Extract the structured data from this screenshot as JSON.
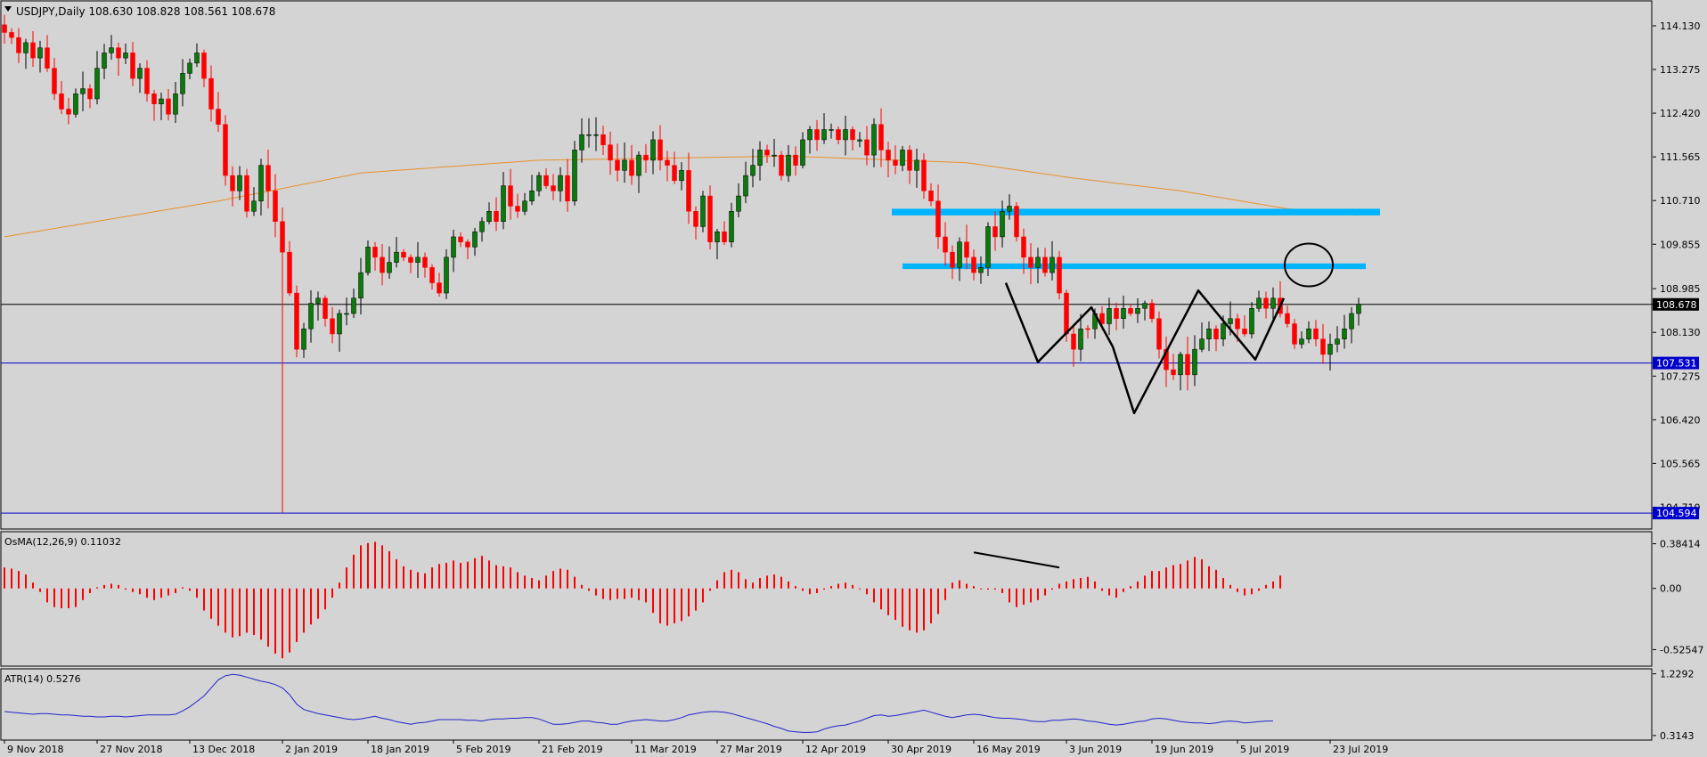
{
  "header": {
    "symbol_line": "USDJPY,Daily  108.630 108.828 108.561 108.678",
    "menu_arrow_icon": "triangle-down-icon"
  },
  "colors": {
    "background": "#d4d4d4",
    "bull": "#0a7a0a",
    "bear": "#ff0000",
    "ma": "#e8922c",
    "zone": "#00b4ff",
    "osma": "#ff0000",
    "atr": "#2222cc",
    "hline": "#0000cc",
    "price_tag": "#000000",
    "hline_tag": "#0000cc",
    "drawing": "#000000"
  },
  "chart_data": [
    {
      "type": "candlestick",
      "title": "USDJPY,Daily  108.630 108.828 108.561 108.678",
      "ylim": [
        104.3,
        114.6
      ],
      "y_ticks": [
        "114.130",
        "113.275",
        "112.420",
        "111.565",
        "110.710",
        "109.855",
        "108.985",
        "108.130",
        "107.275",
        "106.420",
        "105.565",
        "104.710"
      ],
      "x_tick_labels": [
        "9 Nov 2018",
        "27 Nov 2018",
        "13 Dec 2018",
        "2 Jan 2019",
        "18 Jan 2019",
        "5 Feb 2019",
        "21 Feb 2019",
        "11 Mar 2019",
        "27 Mar 2019",
        "12 Apr 2019",
        "30 Apr 2019",
        "16 May 2019",
        "3 Jun 2019",
        "19 Jun 2019",
        "5 Jul 2019",
        "23 Jul 2019"
      ],
      "x_tick_index": [
        0,
        13,
        26,
        39,
        51,
        63,
        75,
        88,
        100,
        112,
        124,
        136,
        149,
        161,
        173,
        186
      ],
      "close": [
        114.0,
        113.9,
        113.6,
        113.8,
        113.5,
        113.7,
        113.3,
        112.8,
        112.5,
        112.4,
        112.8,
        112.9,
        112.7,
        113.3,
        113.6,
        113.7,
        113.5,
        113.6,
        113.1,
        113.3,
        112.8,
        112.6,
        112.7,
        112.4,
        112.8,
        113.2,
        113.4,
        113.6,
        113.1,
        112.5,
        112.2,
        111.2,
        110.9,
        111.2,
        110.5,
        110.7,
        111.4,
        110.9,
        110.3,
        109.7,
        108.9,
        107.8,
        108.2,
        108.7,
        108.8,
        108.4,
        108.1,
        108.5,
        108.5,
        108.8,
        109.3,
        109.8,
        109.6,
        109.3,
        109.5,
        109.7,
        109.6,
        109.5,
        109.6,
        109.4,
        109.1,
        108.9,
        109.6,
        110.0,
        109.9,
        109.8,
        110.1,
        110.3,
        110.5,
        110.3,
        111.0,
        110.6,
        110.5,
        110.7,
        110.9,
        111.2,
        111.0,
        110.9,
        111.2,
        110.7,
        111.7,
        112.0,
        112.0,
        112.0,
        111.8,
        111.5,
        111.3,
        111.5,
        111.2,
        111.6,
        111.5,
        111.9,
        111.5,
        111.4,
        111.1,
        111.3,
        110.5,
        110.2,
        110.8,
        109.9,
        110.1,
        109.9,
        110.5,
        110.8,
        111.2,
        111.4,
        111.7,
        111.6,
        111.6,
        111.2,
        111.6,
        111.4,
        111.9,
        112.1,
        111.9,
        112.1,
        112.1,
        111.9,
        112.1,
        111.9,
        111.9,
        111.6,
        112.2,
        111.7,
        111.5,
        111.4,
        111.7,
        111.3,
        111.5,
        110.9,
        110.7,
        110.0,
        109.7,
        109.4,
        109.9,
        109.6,
        109.3,
        109.4,
        110.2,
        110.0,
        110.5,
        110.6,
        110.0,
        109.6,
        109.4,
        109.6,
        109.3,
        109.6,
        108.9,
        108.1,
        107.8,
        108.2,
        108.2,
        108.5,
        108.3,
        108.6,
        108.4,
        108.6,
        108.5,
        108.6,
        108.7,
        108.4,
        107.8,
        107.4,
        107.3,
        107.7,
        107.3,
        107.8,
        108.0,
        108.2,
        108.0,
        108.3,
        108.4,
        108.2,
        108.1,
        108.6,
        108.8,
        108.6,
        108.8,
        108.5,
        108.3,
        107.9,
        108.0,
        108.2,
        108.0,
        107.7,
        107.9,
        108.0,
        108.2,
        108.5,
        108.68
      ],
      "moving_average": {
        "name": "",
        "values_by_index": [
          [
            0,
            110.0
          ],
          [
            30,
            110.7
          ],
          [
            50,
            111.25
          ],
          [
            75,
            111.5
          ],
          [
            110,
            111.58
          ],
          [
            135,
            111.45
          ],
          [
            150,
            111.15
          ],
          [
            165,
            110.9
          ],
          [
            180,
            110.55
          ],
          [
            190,
            110.42
          ]
        ]
      },
      "zones": [
        {
          "from_index": 124.5,
          "to_index": 193,
          "low": 110.42,
          "high": 110.55
        },
        {
          "from_index": 126,
          "to_index": 191,
          "low": 109.37,
          "high": 109.48
        }
      ],
      "horizontal_lines": [
        {
          "value": 108.678,
          "label": "108.678",
          "style": "price"
        },
        {
          "value": 107.531,
          "label": "107.531",
          "style": "blue"
        },
        {
          "value": 104.594,
          "label": "104.594",
          "style": "blue"
        }
      ],
      "annotation_polyline": [
        [
          140.5,
          109.1
        ],
        [
          145,
          107.55
        ],
        [
          152.5,
          108.62
        ],
        [
          155.5,
          107.85
        ],
        [
          158.5,
          106.55
        ],
        [
          167.5,
          108.95
        ],
        [
          175.5,
          107.6
        ],
        [
          179.5,
          108.8
        ]
      ],
      "annotation_circle": {
        "index": 183,
        "value": 109.45
      }
    },
    {
      "type": "bar",
      "title": "OsMA(12,26,9) 0.11032",
      "ylim": [
        -0.66,
        0.48
      ],
      "y_ticks": [
        "0.38414",
        "0.00",
        "-0.52547"
      ],
      "values": [
        0.18,
        0.17,
        0.15,
        0.12,
        0.05,
        -0.03,
        -0.12,
        -0.16,
        -0.17,
        -0.17,
        -0.16,
        -0.1,
        -0.04,
        0.01,
        0.03,
        0.04,
        0.03,
        -0.01,
        -0.03,
        -0.05,
        -0.08,
        -0.1,
        -0.08,
        -0.06,
        -0.04,
        0.01,
        -0.02,
        -0.08,
        -0.19,
        -0.26,
        -0.32,
        -0.38,
        -0.42,
        -0.41,
        -0.38,
        -0.4,
        -0.44,
        -0.5,
        -0.56,
        -0.6,
        -0.55,
        -0.46,
        -0.38,
        -0.31,
        -0.26,
        -0.18,
        -0.08,
        0.05,
        0.18,
        0.29,
        0.37,
        0.39,
        0.4,
        0.37,
        0.32,
        0.25,
        0.19,
        0.16,
        0.14,
        0.13,
        0.18,
        0.21,
        0.22,
        0.24,
        0.22,
        0.23,
        0.26,
        0.28,
        0.24,
        0.2,
        0.19,
        0.18,
        0.14,
        0.11,
        0.09,
        0.07,
        0.11,
        0.15,
        0.17,
        0.16,
        0.1,
        0.03,
        -0.02,
        -0.06,
        -0.09,
        -0.1,
        -0.09,
        -0.09,
        -0.08,
        -0.1,
        -0.12,
        -0.21,
        -0.3,
        -0.32,
        -0.3,
        -0.28,
        -0.24,
        -0.19,
        -0.12,
        -0.02,
        0.07,
        0.14,
        0.16,
        0.14,
        0.08,
        0.05,
        0.09,
        0.11,
        0.12,
        0.1,
        0.06,
        0.02,
        -0.02,
        -0.05,
        -0.04,
        -0.01,
        0.02,
        0.04,
        0.05,
        0.03,
        0.0,
        -0.05,
        -0.12,
        -0.18,
        -0.23,
        -0.27,
        -0.33,
        -0.36,
        -0.38,
        -0.36,
        -0.3,
        -0.22,
        -0.1,
        0.05,
        0.07,
        0.04,
        0.02,
        0.0,
        -0.01,
        -0.01,
        -0.04,
        -0.12,
        -0.16,
        -0.14,
        -0.12,
        -0.1,
        -0.06,
        -0.01,
        0.04,
        0.06,
        0.08,
        0.09,
        0.1,
        0.06,
        -0.02,
        -0.06,
        -0.08,
        -0.03,
        0.02,
        0.06,
        0.11,
        0.15,
        0.15,
        0.18,
        0.2,
        0.21,
        0.24,
        0.27,
        0.25,
        0.19,
        0.16,
        0.09,
        0.03,
        -0.03,
        -0.06,
        -0.05,
        -0.02,
        0.03,
        0.06,
        0.11
      ],
      "trendline": [
        [
          136,
          0.31
        ],
        [
          148,
          0.18
        ]
      ]
    },
    {
      "type": "line",
      "title": "ATR(14) 0.5276",
      "ylim": [
        0.26,
        1.29
      ],
      "y_ticks": [
        "1.2292",
        "0.3143"
      ],
      "values": [
        0.67,
        0.66,
        0.65,
        0.64,
        0.63,
        0.64,
        0.64,
        0.63,
        0.62,
        0.62,
        0.61,
        0.6,
        0.6,
        0.59,
        0.59,
        0.6,
        0.6,
        0.59,
        0.6,
        0.61,
        0.62,
        0.62,
        0.62,
        0.62,
        0.63,
        0.68,
        0.74,
        0.82,
        0.9,
        1.02,
        1.14,
        1.2,
        1.22,
        1.21,
        1.18,
        1.15,
        1.12,
        1.1,
        1.07,
        1.02,
        0.92,
        0.78,
        0.7,
        0.67,
        0.64,
        0.62,
        0.6,
        0.58,
        0.56,
        0.55,
        0.56,
        0.58,
        0.6,
        0.57,
        0.55,
        0.52,
        0.5,
        0.48,
        0.5,
        0.51,
        0.53,
        0.55,
        0.55,
        0.55,
        0.55,
        0.54,
        0.54,
        0.53,
        0.55,
        0.56,
        0.56,
        0.57,
        0.57,
        0.58,
        0.58,
        0.56,
        0.52,
        0.48,
        0.48,
        0.49,
        0.51,
        0.53,
        0.53,
        0.51,
        0.5,
        0.48,
        0.48,
        0.51,
        0.53,
        0.54,
        0.55,
        0.54,
        0.53,
        0.53,
        0.55,
        0.58,
        0.62,
        0.64,
        0.66,
        0.67,
        0.67,
        0.66,
        0.64,
        0.61,
        0.58,
        0.55,
        0.52,
        0.49,
        0.45,
        0.42,
        0.38,
        0.37,
        0.36,
        0.36,
        0.37,
        0.41,
        0.44,
        0.46,
        0.47,
        0.5,
        0.53,
        0.57,
        0.61,
        0.62,
        0.6,
        0.61,
        0.63,
        0.65,
        0.67,
        0.69,
        0.66,
        0.63,
        0.6,
        0.58,
        0.6,
        0.62,
        0.63,
        0.62,
        0.6,
        0.58,
        0.57,
        0.57,
        0.56,
        0.55,
        0.53,
        0.52,
        0.52,
        0.54,
        0.54,
        0.55,
        0.56,
        0.55,
        0.53,
        0.52,
        0.5,
        0.48,
        0.47,
        0.48,
        0.5,
        0.52,
        0.53,
        0.56,
        0.57,
        0.56,
        0.54,
        0.52,
        0.51,
        0.5,
        0.5,
        0.49,
        0.5,
        0.52,
        0.53,
        0.52,
        0.5,
        0.51,
        0.52,
        0.53,
        0.53
      ]
    }
  ]
}
